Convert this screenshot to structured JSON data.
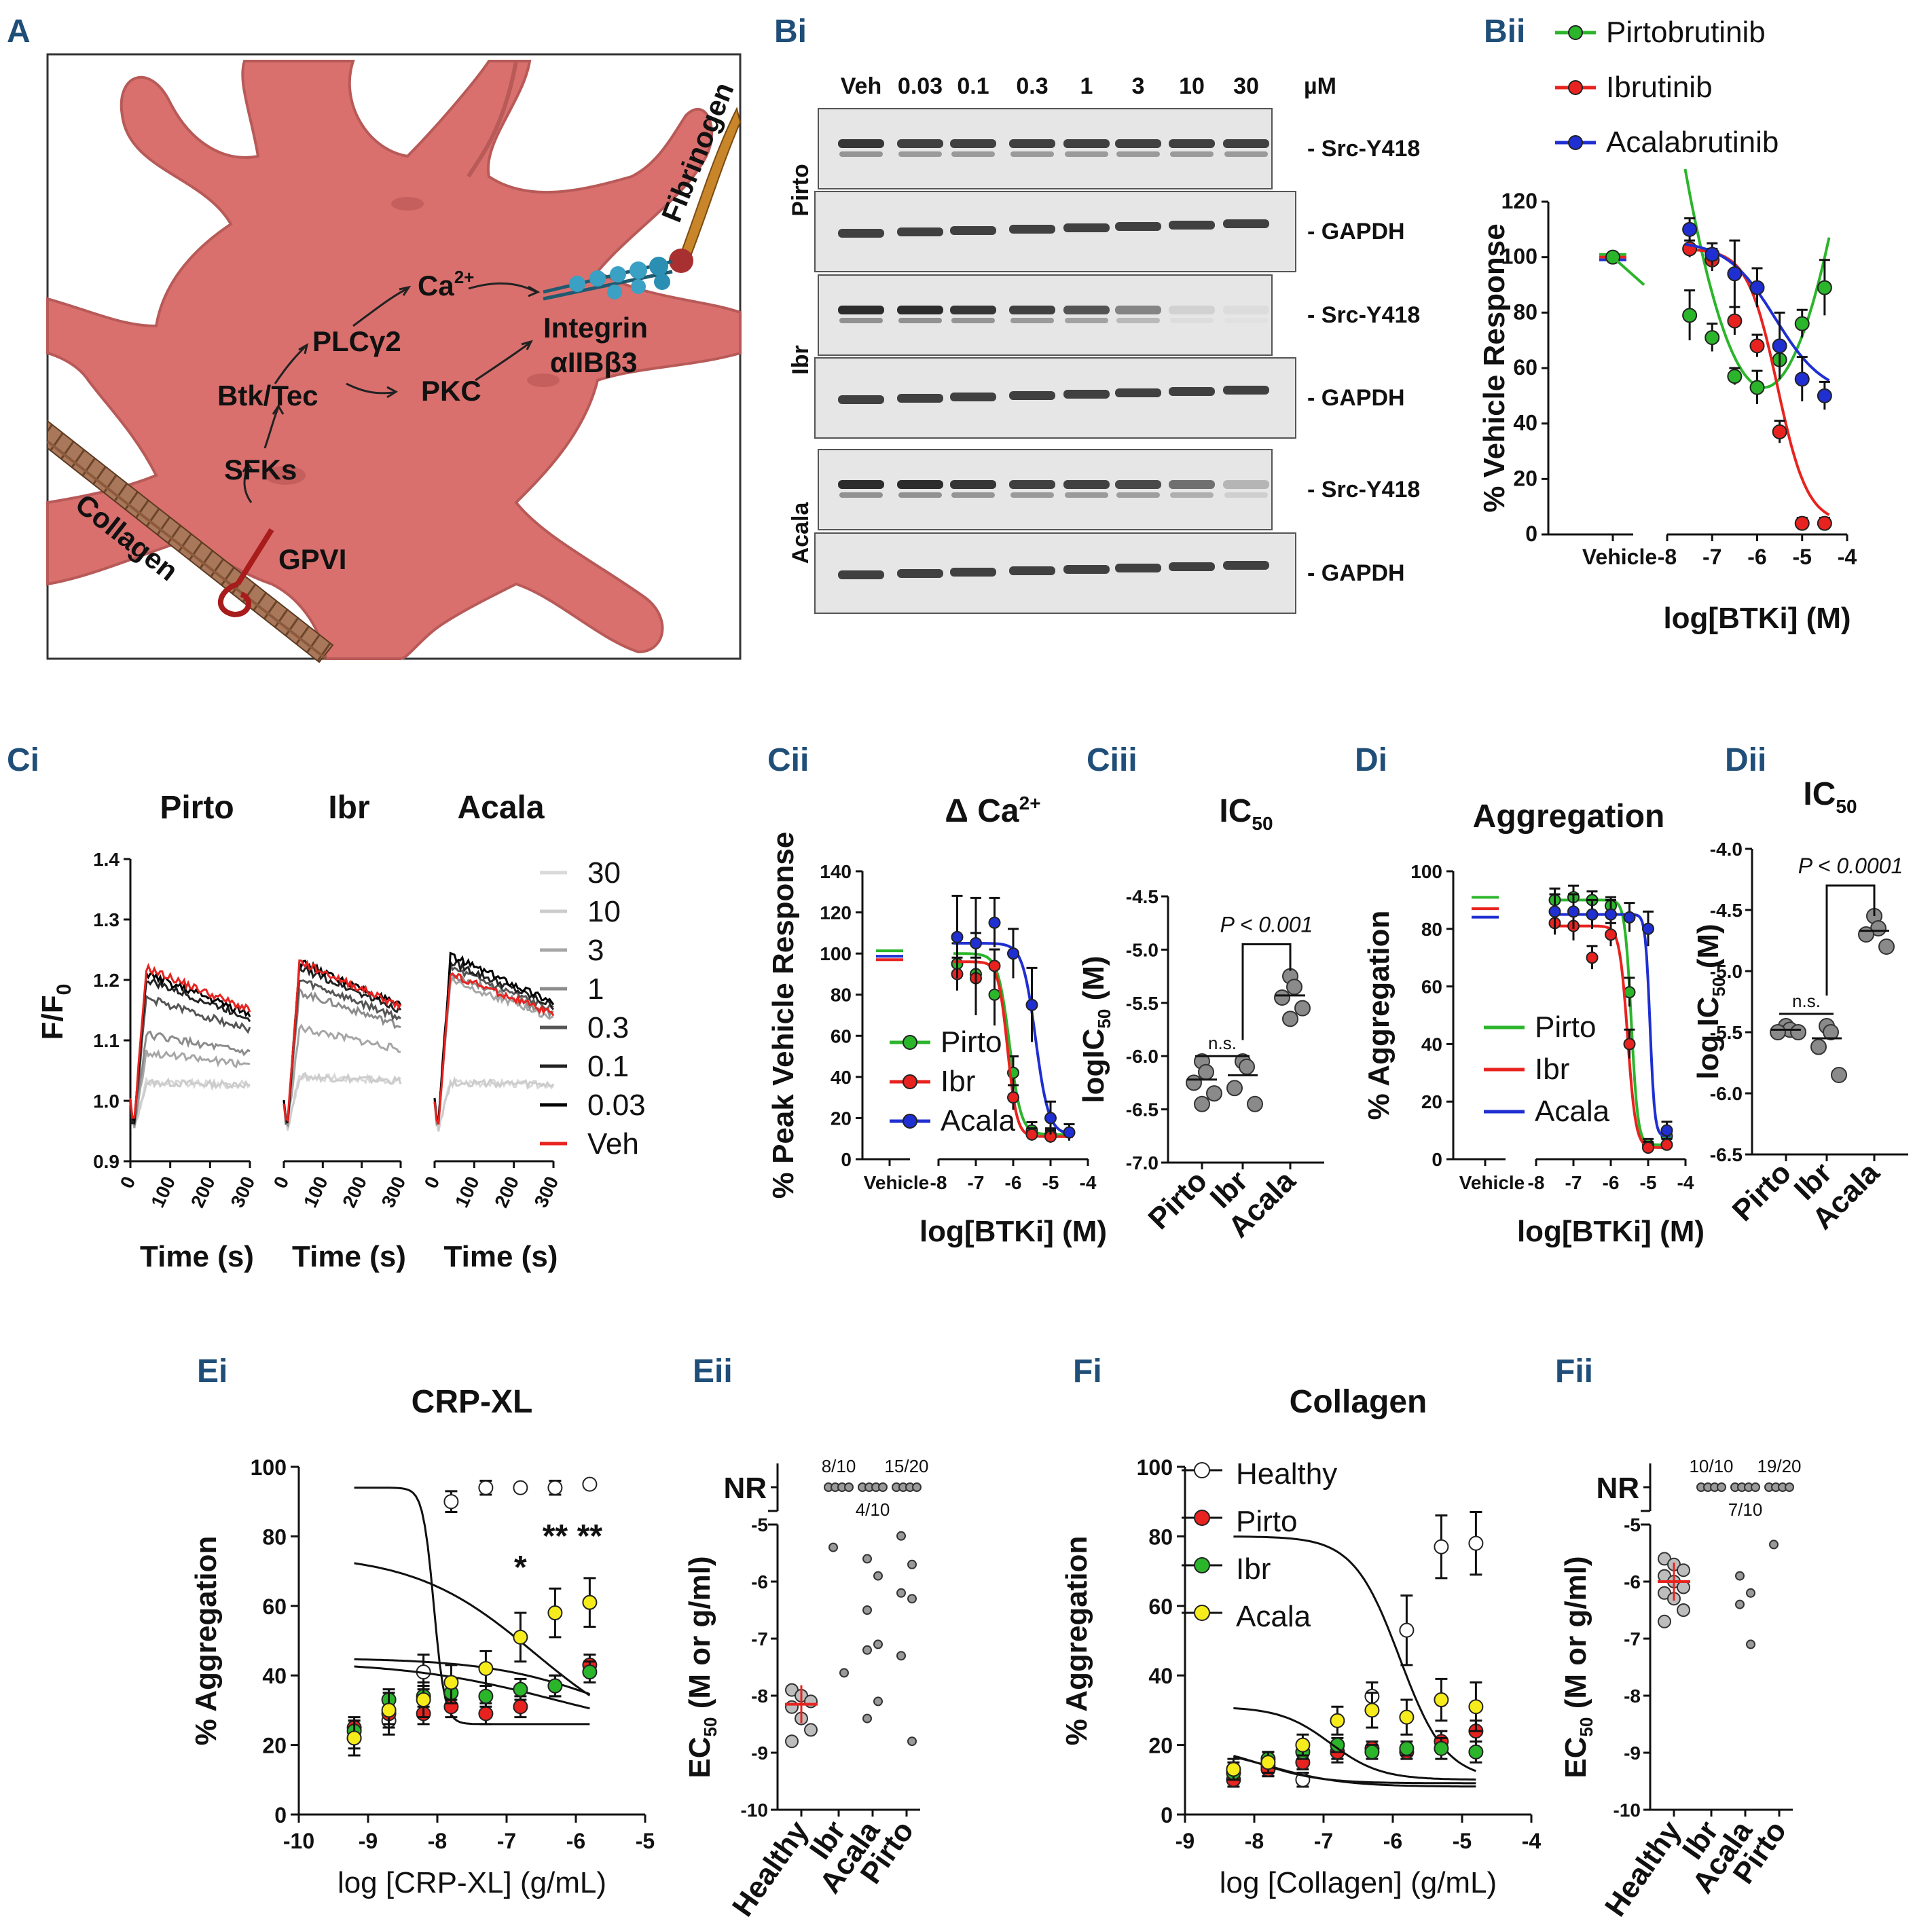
{
  "panels": {
    "A": "A",
    "Bi": "Bi",
    "Bii": "Bii",
    "Ci": "Ci",
    "Cii": "Cii",
    "Ciii": "Ciii",
    "Di": "Di",
    "Dii": "Dii",
    "Ei": "Ei",
    "Eii": "Eii",
    "Fi": "Fi",
    "Fii": "Fii"
  },
  "schematic": {
    "ca": "Ca",
    "ca_sup": "2+",
    "plc": "PLCγ2",
    "btk": "Btk/Tec",
    "pkc": "PKC",
    "sfk": "SFKs",
    "gpvi": "GPVI",
    "integrin": "Integrin",
    "integrin_sub": "αIIBβ3",
    "collagen": "Collagen",
    "fibrinogen": "Fibrinogen",
    "colors": {
      "cell": "#d9706e",
      "cell_dark": "#b85a58",
      "collagen": "#8b5a3c",
      "receptor": "#3aa0c4",
      "arrow": "#222222"
    }
  },
  "blot": {
    "concentrations": [
      "Veh",
      "0.03",
      "0.1",
      "0.3",
      "1",
      "3",
      "10",
      "30"
    ],
    "unit": "µM",
    "groups": [
      "Pirto",
      "Ibr",
      "Acala"
    ],
    "band_labels": {
      "src": "- Src-Y418",
      "gapdh": "- GAPDH"
    },
    "src_intensity": {
      "Pirto": [
        0.9,
        0.85,
        0.85,
        0.85,
        0.85,
        0.85,
        0.85,
        0.85
      ],
      "Ibr": [
        0.95,
        0.95,
        0.9,
        0.85,
        0.75,
        0.5,
        0.1,
        0.05
      ],
      "Acala": [
        0.95,
        0.95,
        0.9,
        0.85,
        0.85,
        0.8,
        0.6,
        0.25
      ]
    }
  },
  "chart_data": [
    {
      "id": "Bii",
      "type": "line",
      "ylabel": "% Vehicle Response",
      "xlabel": "log[BTKi] (M)",
      "ylim": [
        0,
        120
      ],
      "xlim": [
        -8,
        -4
      ],
      "yticks": [
        0,
        20,
        40,
        60,
        80,
        100,
        120
      ],
      "xticks": [
        "-8",
        "-7",
        "-6",
        "-5",
        "-4"
      ],
      "vehicle_label": "Vehicle",
      "legend": [
        "Pirtobrutinib",
        "Ibrutinib",
        "Acalabrutinib"
      ],
      "series": [
        {
          "name": "Pirtobrutinib",
          "color": "#2bb52b",
          "vehicle": 100,
          "x": [
            -7.5,
            -7,
            -6.5,
            -6,
            -5.5,
            -5,
            -4.5
          ],
          "y": [
            79,
            71,
            57,
            53,
            63,
            76,
            89
          ],
          "err": [
            9,
            5,
            3,
            6,
            4,
            5,
            10
          ]
        },
        {
          "name": "Ibrutinib",
          "color": "#e8231f",
          "vehicle": 100,
          "x": [
            -7.5,
            -7,
            -6.5,
            -6,
            -5.5,
            -5,
            -4.5
          ],
          "y": [
            103,
            99,
            77,
            68,
            37,
            4,
            4
          ],
          "err": [
            3,
            4,
            5,
            4,
            4,
            2,
            2
          ]
        },
        {
          "name": "Acalabrutinib",
          "color": "#1f2fd1",
          "vehicle": 100,
          "x": [
            -7.5,
            -7,
            -6.5,
            -6,
            -5.5,
            -5,
            -4.5
          ],
          "y": [
            110,
            101,
            94,
            89,
            68,
            56,
            50
          ],
          "err": [
            4,
            4,
            12,
            7,
            12,
            8,
            5
          ]
        }
      ]
    },
    {
      "id": "Ci",
      "type": "line",
      "ylabel": "F/F",
      "ylabel_sub": "0",
      "xlabel": "Time (s)",
      "ylim": [
        0.9,
        1.4
      ],
      "yticks": [
        "0.9",
        "1.0",
        "1.1",
        "1.2",
        "1.3",
        "1.4"
      ],
      "xticks": [
        "0",
        "100",
        "200",
        "300"
      ],
      "subtitles": [
        "Pirto",
        "Ibr",
        "Acala"
      ],
      "legend": [
        "30",
        "10",
        "3",
        "1",
        "0.3",
        "0.1",
        "0.03",
        "Veh"
      ],
      "legend_colors": [
        "#d9d9d9",
        "#cccccc",
        "#a6a6a6",
        "#8c8c8c",
        "#555555",
        "#222222",
        "#000000",
        "#e8231f"
      ],
      "plateaus": {
        "Pirto": [
          1.01,
          1.01,
          1.06,
          1.09,
          1.15,
          1.18,
          1.19,
          1.2
        ],
        "Ibr": [
          1.02,
          1.02,
          1.1,
          1.16,
          1.18,
          1.2,
          1.21,
          1.21
        ],
        "Acala": [
          1.01,
          1.01,
          1.18,
          1.19,
          1.2,
          1.21,
          1.22,
          1.19
        ]
      }
    },
    {
      "id": "Cii",
      "type": "line",
      "title": "Δ Ca",
      "title_sup": "2+",
      "ylabel": "% Peak Vehicle Response",
      "xlabel": "log[BTKi] (M)",
      "ylim": [
        0,
        140
      ],
      "yticks": [
        0,
        20,
        40,
        60,
        80,
        100,
        120,
        140
      ],
      "xticks": [
        "-8",
        "-7",
        "-6",
        "-5",
        "-4"
      ],
      "vehicle_label": "Vehicle",
      "legend": [
        "Pirto",
        "Ibr",
        "Acala"
      ],
      "series": [
        {
          "name": "Pirto",
          "color": "#2bb52b",
          "vehicle": 100,
          "x": [
            -7.5,
            -7,
            -6.5,
            -6,
            -5.5,
            -5
          ],
          "y": [
            95,
            90,
            80,
            42,
            14,
            12
          ],
          "err": [
            10,
            20,
            15,
            8,
            4,
            3
          ]
        },
        {
          "name": "Ibr",
          "color": "#e8231f",
          "vehicle": 97,
          "x": [
            -7.5,
            -7,
            -6.5,
            -6,
            -5.5,
            -5
          ],
          "y": [
            90,
            88,
            94,
            30,
            12,
            11
          ],
          "err": [
            8,
            10,
            8,
            6,
            3,
            3
          ]
        },
        {
          "name": "Acala",
          "color": "#1f2fd1",
          "vehicle": 100,
          "x": [
            -7.5,
            -7,
            -6.5,
            -6,
            -5.5,
            -5,
            -4.5
          ],
          "y": [
            108,
            105,
            115,
            100,
            75,
            20,
            13
          ],
          "err": [
            20,
            22,
            12,
            12,
            18,
            8,
            4
          ]
        }
      ]
    },
    {
      "id": "Ciii",
      "type": "scatter",
      "title": "IC",
      "title_sub": "50",
      "ylabel": "logIC",
      "ylabel_sub": "50",
      "ylabel_unit": " (M)",
      "ylim": [
        -7.0,
        -4.5
      ],
      "yticks": [
        "-7.0",
        "-6.5",
        "-6.0",
        "-5.5",
        "-5.0",
        "-4.5"
      ],
      "categories": [
        "Pirto",
        "Ibr",
        "Acala"
      ],
      "points": [
        [
          -6.05,
          -6.15,
          -6.25,
          -6.35,
          -6.45
        ],
        [
          -6.05,
          -6.1,
          -6.3,
          -6.45
        ],
        [
          -5.25,
          -5.35,
          -5.45,
          -5.55,
          -5.65
        ]
      ],
      "means": [
        -6.22,
        -6.18,
        -5.43
      ],
      "annotations": [
        "n.s.",
        "P < 0.001"
      ]
    },
    {
      "id": "Di",
      "type": "line",
      "title": "Aggregation",
      "ylabel": "% Aggregation",
      "xlabel": "log[BTKi] (M)",
      "ylim": [
        0,
        100
      ],
      "yticks": [
        0,
        20,
        40,
        60,
        80,
        100
      ],
      "xticks": [
        "-8",
        "-7",
        "-6",
        "-5",
        "-4"
      ],
      "vehicle_label": "Vehicle",
      "legend": [
        "Pirto",
        "Ibr",
        "Acala"
      ],
      "series": [
        {
          "name": "Pirto",
          "color": "#2bb52b",
          "vehicle": 90,
          "x": [
            -7.5,
            -7,
            -6.5,
            -6,
            -5.5,
            -5,
            -4.5
          ],
          "y": [
            90,
            91,
            90,
            88,
            58,
            5,
            8
          ],
          "err": [
            4,
            4,
            3,
            3,
            5,
            2,
            2
          ]
        },
        {
          "name": "Ibr",
          "color": "#e8231f",
          "vehicle": 87,
          "x": [
            -7.5,
            -7,
            -6.5,
            -6,
            -5.5,
            -5,
            -4.5
          ],
          "y": [
            82,
            81,
            70,
            78,
            40,
            4,
            5
          ],
          "err": [
            4,
            5,
            4,
            4,
            5,
            2,
            2
          ]
        },
        {
          "name": "Acala",
          "color": "#1f2fd1",
          "vehicle": 85,
          "x": [
            -7.5,
            -7,
            -6.5,
            -6,
            -5.5,
            -5,
            -4.5
          ],
          "y": [
            86,
            86,
            85,
            85,
            84,
            80,
            10
          ],
          "err": [
            6,
            6,
            5,
            5,
            5,
            6,
            3
          ]
        }
      ]
    },
    {
      "id": "Dii",
      "type": "scatter",
      "title": "IC",
      "title_sub": "50",
      "ylabel": "log IC",
      "ylabel_sub": "50",
      "ylabel_unit": " (M)",
      "ylim": [
        -6.5,
        -4.0
      ],
      "yticks": [
        "-6.5",
        "-6.0",
        "-5.5",
        "-5.0",
        "-4.5",
        "-4.0"
      ],
      "categories": [
        "Pirto",
        "Ibr",
        "Acala"
      ],
      "points": [
        [
          -5.45,
          -5.48,
          -5.5,
          -5.5
        ],
        [
          -5.45,
          -5.5,
          -5.62,
          -5.85
        ],
        [
          -4.55,
          -4.65,
          -4.7,
          -4.8
        ]
      ],
      "means": [
        -5.48,
        -5.55,
        -4.67
      ],
      "annotations": [
        "n.s.",
        "P < 0.0001"
      ]
    },
    {
      "id": "Ei",
      "type": "line",
      "title": "CRP-XL",
      "ylabel": "% Aggregation",
      "xlabel": "log [CRP-XL] (g/mL)",
      "ylim": [
        0,
        100
      ],
      "yticks": [
        0,
        20,
        40,
        60,
        80,
        100
      ],
      "xlim": [
        -10,
        -5
      ],
      "xticks": [
        "-10",
        "-9",
        "-8",
        "-7",
        "-6",
        "-5"
      ],
      "stars": [
        "*",
        "**",
        "**"
      ],
      "series": [
        {
          "name": "Healthy",
          "color": "#ffffff",
          "x": [
            -9.2,
            -8.7,
            -8.2,
            -7.8,
            -7.3,
            -6.8,
            -6.3,
            -5.8
          ],
          "y": [
            22,
            27,
            41,
            90,
            94,
            94,
            94,
            95
          ],
          "err": [
            3,
            4,
            5,
            3,
            2,
            1,
            2,
            1
          ]
        },
        {
          "name": "Pirto",
          "color": "#e8231f",
          "x": [
            -9.2,
            -8.7,
            -8.2,
            -7.8,
            -7.3,
            -6.8,
            -6.3,
            -5.8
          ],
          "y": [
            25,
            29,
            29,
            31,
            29,
            31,
            37,
            43
          ],
          "err": [
            3,
            3,
            3,
            3,
            3,
            3,
            3,
            3
          ]
        },
        {
          "name": "Ibr",
          "color": "#2bb52b",
          "x": [
            -9.2,
            -8.7,
            -8.2,
            -7.8,
            -7.3,
            -6.8,
            -6.3,
            -5.8
          ],
          "y": [
            24,
            33,
            34,
            35,
            34,
            36,
            37,
            41
          ],
          "err": [
            3,
            3,
            3,
            3,
            3,
            3,
            3,
            3
          ]
        },
        {
          "name": "Acala",
          "color": "#f7ec1b",
          "x": [
            -9.2,
            -8.7,
            -8.2,
            -7.8,
            -7.3,
            -6.8,
            -6.3,
            -5.8
          ],
          "y": [
            22,
            30,
            33,
            38,
            42,
            51,
            58,
            61
          ],
          "err": [
            5,
            5,
            5,
            5,
            5,
            7,
            7,
            7
          ]
        }
      ]
    },
    {
      "id": "Eii",
      "type": "scatter",
      "ylabel": "EC",
      "ylabel_sub": "50",
      "ylabel_unit": " (M or g/ml)",
      "ylim": [
        -10,
        -5
      ],
      "yticks": [
        "-10",
        "-9",
        "-8",
        "-7",
        "-6",
        "-5"
      ],
      "nr_label": "NR",
      "categories": [
        "Healthy",
        "Ibr",
        "Acala",
        "Pirto"
      ],
      "nr_counts": [
        "",
        "8/10",
        "4/10",
        "15/20"
      ],
      "points": [
        [
          -7.9,
          -8.0,
          -8.1,
          -8.2,
          -8.4,
          -8.6,
          -8.8
        ],
        [
          -5.4,
          -7.6
        ],
        [
          -5.6,
          -5.9,
          -6.5,
          -7.1,
          -7.2,
          -8.1,
          -8.4
        ],
        [
          -5.2,
          -5.7,
          -6.2,
          -6.3,
          -7.3,
          -8.8
        ]
      ],
      "healthy_mean": -8.15
    },
    {
      "id": "Fi",
      "type": "line",
      "title": "Collagen",
      "ylabel": "% Aggregation",
      "xlabel": "log [Collagen] (g/mL)",
      "ylim": [
        0,
        100
      ],
      "yticks": [
        0,
        20,
        40,
        60,
        80,
        100
      ],
      "xlim": [
        -9,
        -4
      ],
      "xticks": [
        "-9",
        "-8",
        "-7",
        "-6",
        "-5",
        "-4"
      ],
      "legend": [
        "Healthy",
        "Pirto",
        "Ibr",
        "Acala"
      ],
      "series": [
        {
          "name": "Healthy",
          "color": "#ffffff",
          "x": [
            -8.3,
            -7.8,
            -7.3,
            -6.8,
            -6.3,
            -5.8,
            -5.3,
            -4.8
          ],
          "y": [
            12,
            14,
            10,
            18,
            34,
            53,
            77,
            78
          ],
          "err": [
            3,
            3,
            2,
            3,
            4,
            10,
            9,
            9
          ]
        },
        {
          "name": "Pirto",
          "color": "#e8231f",
          "x": [
            -8.3,
            -7.8,
            -7.3,
            -6.8,
            -6.3,
            -5.8,
            -5.3,
            -4.8
          ],
          "y": [
            10,
            13,
            15,
            18,
            19,
            18,
            21,
            24
          ],
          "err": [
            2,
            2,
            2,
            2,
            2,
            2,
            3,
            3
          ]
        },
        {
          "name": "Ibr",
          "color": "#2bb52b",
          "x": [
            -8.3,
            -7.8,
            -7.3,
            -6.8,
            -6.3,
            -5.8,
            -5.3,
            -4.8
          ],
          "y": [
            12,
            16,
            18,
            20,
            18,
            19,
            19,
            18
          ],
          "err": [
            2,
            2,
            2,
            2,
            2,
            2,
            3,
            3
          ]
        },
        {
          "name": "Acala",
          "color": "#f7ec1b",
          "x": [
            -8.3,
            -7.8,
            -7.3,
            -6.8,
            -6.3,
            -5.8,
            -5.3,
            -4.8
          ],
          "y": [
            13,
            15,
            20,
            27,
            30,
            28,
            33,
            31
          ],
          "err": [
            3,
            3,
            3,
            4,
            5,
            5,
            6,
            7
          ]
        }
      ]
    },
    {
      "id": "Fii",
      "type": "scatter",
      "ylabel": "EC",
      "ylabel_sub": "50",
      "ylabel_unit": " (M or g/ml)",
      "ylim": [
        -10,
        -5
      ],
      "yticks": [
        "-10",
        "-9",
        "-8",
        "-7",
        "-6",
        "-5"
      ],
      "nr_label": "NR",
      "categories": [
        "Healthy",
        "Ibr",
        "Acala",
        "Pirto"
      ],
      "nr_counts": [
        "",
        "10/10",
        "7/10",
        "19/20"
      ],
      "points": [
        [
          -5.6,
          -5.7,
          -5.8,
          -5.9,
          -6.0,
          -6.1,
          -6.2,
          -6.3,
          -6.5,
          -6.7
        ],
        [],
        [
          -5.9,
          -6.2,
          -6.4,
          -7.1
        ],
        [
          -5.35
        ]
      ],
      "healthy_mean": -6.0
    }
  ]
}
